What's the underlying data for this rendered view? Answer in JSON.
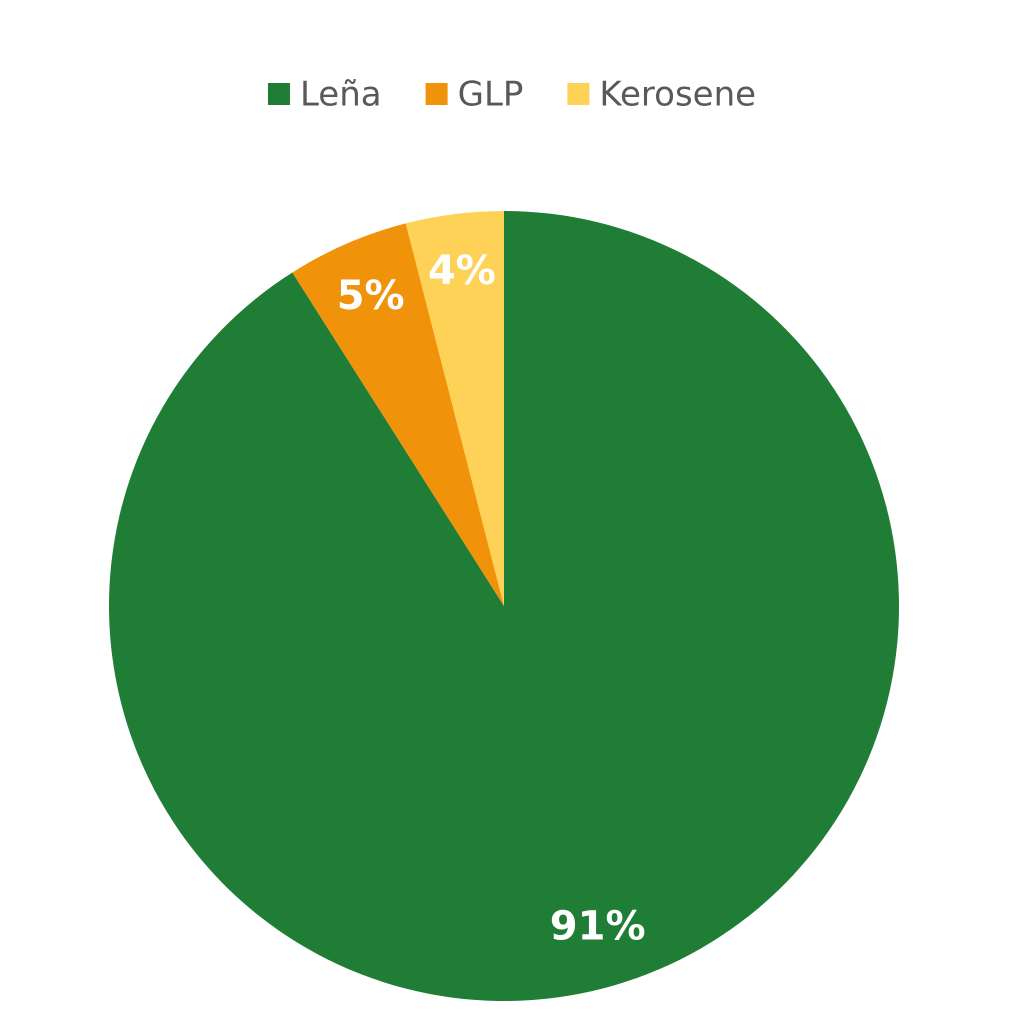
{
  "chart_data": {
    "type": "pie",
    "categories": [
      "Leña",
      "GLP",
      "Kerosene"
    ],
    "values": [
      91,
      5,
      4
    ],
    "value_labels": [
      "91%",
      "5%",
      "4%"
    ],
    "colors": [
      "#1f7d36",
      "#f0920a",
      "#fdd257"
    ],
    "legend": "top"
  }
}
